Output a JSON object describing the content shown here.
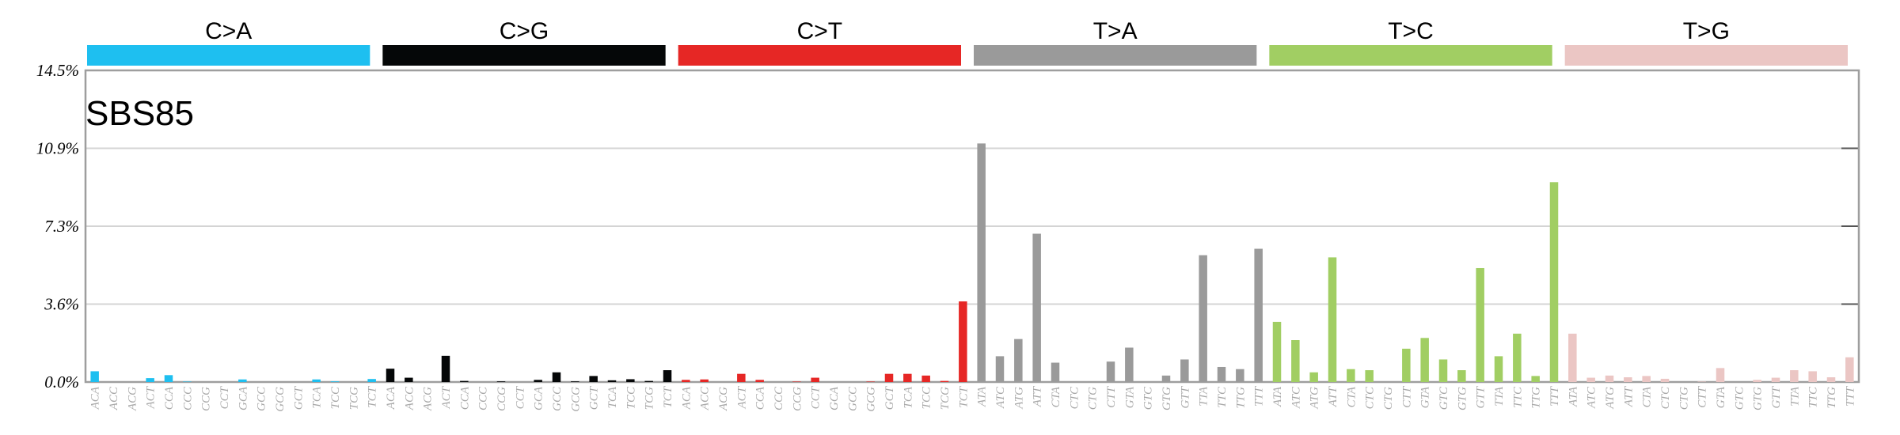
{
  "chart_data": {
    "type": "bar",
    "title": "SBS85",
    "ylim": [
      0,
      14.5
    ],
    "yticks": [
      "0.0%",
      "3.6%",
      "7.3%",
      "10.9%",
      "14.5%"
    ],
    "grid": true,
    "groups": [
      {
        "label": "C>A",
        "color": "#1ebff0"
      },
      {
        "label": "C>G",
        "color": "#050708"
      },
      {
        "label": "C>T",
        "color": "#e62725"
      },
      {
        "label": "T>A",
        "color": "#9a9a9a"
      },
      {
        "label": "T>C",
        "color": "#a1ce63"
      },
      {
        "label": "T>G",
        "color": "#ebc6c4"
      }
    ],
    "categories": [
      "ACA",
      "ACC",
      "ACG",
      "ACT",
      "CCA",
      "CCC",
      "CCG",
      "CCT",
      "GCA",
      "GCC",
      "GCG",
      "GCT",
      "TCA",
      "TCC",
      "TCG",
      "TCT",
      "ACA",
      "ACC",
      "ACG",
      "ACT",
      "CCA",
      "CCC",
      "CCG",
      "CCT",
      "GCA",
      "GCC",
      "GCG",
      "GCT",
      "TCA",
      "TCC",
      "TCG",
      "TCT",
      "ACA",
      "ACC",
      "ACG",
      "ACT",
      "CCA",
      "CCC",
      "CCG",
      "CCT",
      "GCA",
      "GCC",
      "GCG",
      "GCT",
      "TCA",
      "TCC",
      "TCG",
      "TCT",
      "ATA",
      "ATC",
      "ATG",
      "ATT",
      "CTA",
      "CTC",
      "CTG",
      "CTT",
      "GTA",
      "GTC",
      "GTG",
      "GTT",
      "TTA",
      "TTC",
      "TTG",
      "TTT",
      "ATA",
      "ATC",
      "ATG",
      "ATT",
      "CTA",
      "CTC",
      "CTG",
      "CTT",
      "GTA",
      "GTC",
      "GTG",
      "GTT",
      "TTA",
      "TTC",
      "TTG",
      "TTT",
      "ATA",
      "ATC",
      "ATG",
      "ATT",
      "CTA",
      "CTC",
      "CTG",
      "CTT",
      "GTA",
      "GTC",
      "GTG",
      "GTT",
      "TTA",
      "TTC",
      "TTG",
      "TTT"
    ],
    "values": [
      0.5,
      0.0,
      0.0,
      0.18,
      0.32,
      0.02,
      0.0,
      0.0,
      0.12,
      0.0,
      0.0,
      0.0,
      0.12,
      0.03,
      0.0,
      0.14,
      0.62,
      0.2,
      0.0,
      1.22,
      0.05,
      0.0,
      0.03,
      0.0,
      0.1,
      0.45,
      0.03,
      0.28,
      0.08,
      0.13,
      0.05,
      0.55,
      0.1,
      0.12,
      0.0,
      0.38,
      0.1,
      0.0,
      0.02,
      0.2,
      0.0,
      0.0,
      0.02,
      0.38,
      0.38,
      0.3,
      0.05,
      3.75,
      11.1,
      1.2,
      2.0,
      6.9,
      0.9,
      0.02,
      0.02,
      0.95,
      1.6,
      0.0,
      0.3,
      1.05,
      5.9,
      0.7,
      0.6,
      6.2,
      2.8,
      1.95,
      0.45,
      5.8,
      0.6,
      0.55,
      0.0,
      1.55,
      2.05,
      1.05,
      0.55,
      5.3,
      1.2,
      2.25,
      0.28,
      9.3,
      2.25,
      0.2,
      0.3,
      0.22,
      0.28,
      0.15,
      0.0,
      0.02,
      0.65,
      0.0,
      0.1,
      0.2,
      0.55,
      0.5,
      0.22,
      1.15
    ]
  }
}
